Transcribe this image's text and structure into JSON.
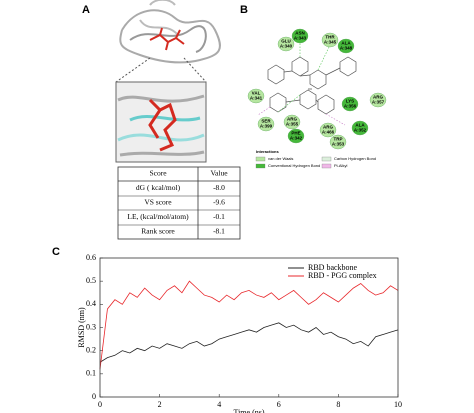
{
  "panel_a": {
    "label": "A",
    "table": {
      "header": [
        "Score",
        "Value"
      ],
      "rows": [
        [
          "dG ( kcal/mol)",
          "-8.0"
        ],
        [
          "VS score",
          "-9.6"
        ],
        [
          "LE, (kcal/mol/atom)",
          "-0.1"
        ],
        [
          "Rank score",
          "-8.1"
        ]
      ]
    }
  },
  "panel_b": {
    "label": "B",
    "residues": [
      "ASN A:343",
      "THR A:345",
      "GLU A:340",
      "ALA A:348",
      "VAL A:341",
      "ARG A:357",
      "LYS A:356",
      "SER A:399",
      "ARG A:355",
      "PHE A:342",
      "ARG A:466",
      "TRP A:353",
      "ALA A:352"
    ],
    "legend_title": "Interactions",
    "legend": [
      "van der Waals",
      "Carbon Hydrogen Bond",
      "Conventional Hydrogen Bond",
      "Pi-Alkyl"
    ]
  },
  "panel_c": {
    "label": "C"
  },
  "chart_data": {
    "type": "line",
    "xlabel": "Time (ns)",
    "ylabel": "RMSD (nm)",
    "x": [
      0,
      0.25,
      0.5,
      0.75,
      1,
      1.25,
      1.5,
      1.75,
      2,
      2.25,
      2.5,
      2.75,
      3,
      3.25,
      3.5,
      3.75,
      4,
      4.25,
      4.5,
      4.75,
      5,
      5.25,
      5.5,
      5.75,
      6,
      6.25,
      6.5,
      6.75,
      7,
      7.25,
      7.5,
      7.75,
      8,
      8.25,
      8.5,
      8.75,
      9,
      9.25,
      9.5,
      9.75,
      10
    ],
    "series": [
      {
        "name": "RBD backbone",
        "color": "#222222",
        "values": [
          0.15,
          0.17,
          0.18,
          0.2,
          0.19,
          0.21,
          0.2,
          0.22,
          0.21,
          0.23,
          0.22,
          0.21,
          0.23,
          0.24,
          0.22,
          0.23,
          0.25,
          0.26,
          0.27,
          0.28,
          0.29,
          0.28,
          0.3,
          0.31,
          0.32,
          0.3,
          0.31,
          0.29,
          0.28,
          0.3,
          0.27,
          0.28,
          0.26,
          0.25,
          0.23,
          0.24,
          0.22,
          0.26,
          0.27,
          0.28,
          0.29
        ]
      },
      {
        "name": "RBD - PGG complex",
        "color": "#e8282c",
        "values": [
          0.12,
          0.38,
          0.42,
          0.4,
          0.45,
          0.43,
          0.47,
          0.44,
          0.42,
          0.46,
          0.48,
          0.45,
          0.5,
          0.47,
          0.44,
          0.43,
          0.41,
          0.44,
          0.42,
          0.45,
          0.46,
          0.44,
          0.43,
          0.45,
          0.42,
          0.44,
          0.46,
          0.43,
          0.4,
          0.42,
          0.45,
          0.43,
          0.41,
          0.44,
          0.47,
          0.49,
          0.46,
          0.44,
          0.45,
          0.48,
          0.46
        ]
      }
    ],
    "xlim": [
      0,
      10
    ],
    "xticks": [
      0,
      2,
      4,
      6,
      8,
      10
    ],
    "ylim": [
      0,
      0.6
    ],
    "yticks": [
      0,
      0.1,
      0.2,
      0.3,
      0.4,
      0.5,
      0.6
    ],
    "legend": "upper right"
  }
}
